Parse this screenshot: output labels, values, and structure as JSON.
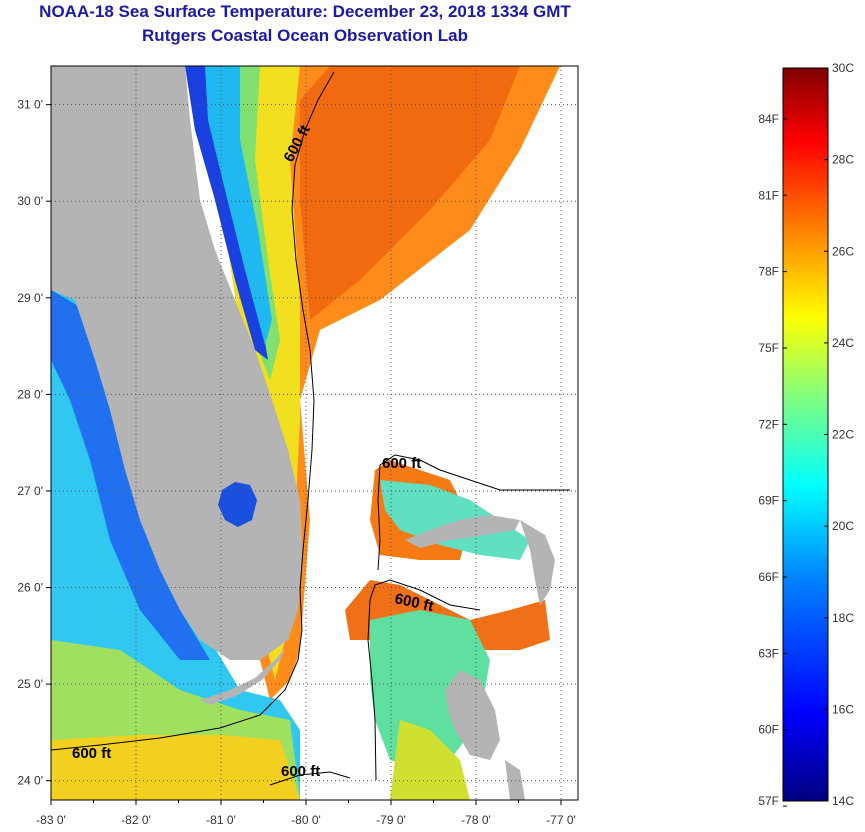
{
  "title": "NOAA-18 Sea Surface Temperature:  December 23, 2018 1334 GMT",
  "subtitle": "Rutgers Coastal Ocean Observation Lab",
  "map": {
    "lon_range": [
      -83,
      -76.8
    ],
    "lat_range": [
      23.8,
      31.4
    ],
    "lon_ticks": [
      -83,
      -82,
      -81,
      -80,
      -79,
      -78,
      -77
    ],
    "lon_tick_labels": [
      "-83 0'",
      "-82 0'",
      "-81 0'",
      "-80 0'",
      "-79 0'",
      "-78 0'",
      "-77 0'"
    ],
    "lat_ticks": [
      24,
      25,
      26,
      27,
      28,
      29,
      30,
      31
    ],
    "lat_tick_labels": [
      "24 0'",
      "25 0'",
      "26 0'",
      "27 0'",
      "28 0'",
      "29 0'",
      "30 0'",
      "31 0'"
    ],
    "contour_label": "600 ft",
    "colors": {
      "land": "#b4b4b4",
      "cloud": "#ffffff",
      "frame": "#000000"
    }
  },
  "colorbar": {
    "celsius_labels": [
      "30C",
      "28C",
      "26C",
      "24C",
      "22C",
      "20C",
      "18C",
      "16C",
      "14C"
    ],
    "fahrenheit_labels": [
      "84F",
      "81F",
      "78F",
      "75F",
      "72F",
      "69F",
      "66F",
      "63F",
      "60F",
      "57F"
    ],
    "range_c": [
      14,
      30
    ],
    "colors": [
      "#00007f",
      "#0000ff",
      "#0080ff",
      "#00ffff",
      "#80ff80",
      "#ffff00",
      "#ff8000",
      "#ff0000",
      "#7f0000"
    ]
  }
}
